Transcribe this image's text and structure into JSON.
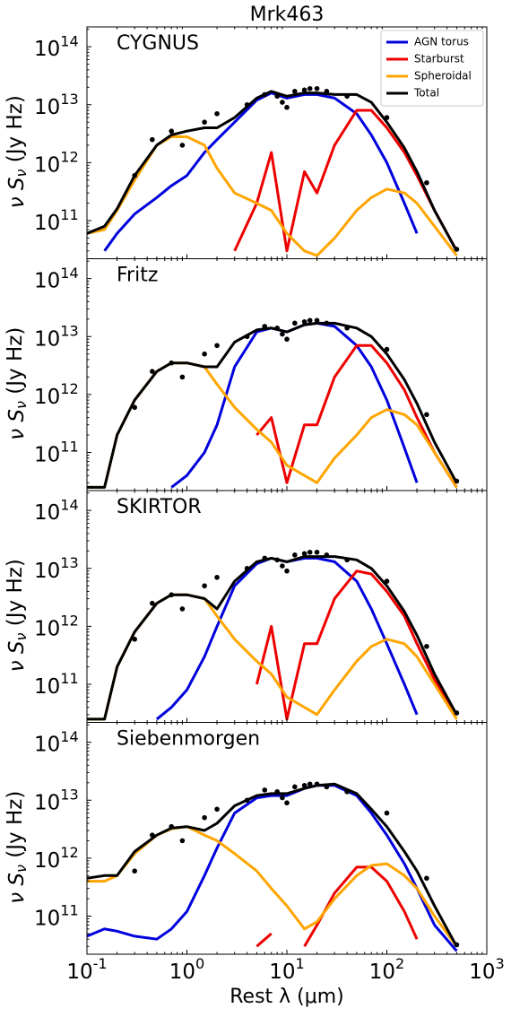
{
  "chart_data": [
    {
      "type": "line",
      "title": "Mrk463",
      "label": "CYGNUS",
      "ylabel": "ν Sν (Jy Hz)",
      "xscale": "log",
      "yscale": "log",
      "legend": "upper right",
      "xlim": [
        0.1,
        1000
      ],
      "ylim": [
        22000000000.0,
        220000000000000.0
      ],
      "xticks": [
        0.1,
        1,
        10,
        100,
        1000
      ],
      "yticks": [
        {
          "value": 100000000000.0,
          "label": "10^11"
        },
        {
          "value": 1000000000000.0,
          "label": "10^12"
        },
        {
          "value": 10000000000000.0,
          "label": "10^13"
        },
        {
          "value": 100000000000000.0,
          "label": "10^14"
        }
      ],
      "x": [
        0.1,
        0.15,
        0.2,
        0.3,
        0.5,
        0.7,
        1,
        1.5,
        2,
        3,
        5,
        7,
        10,
        15,
        20,
        30,
        50,
        70,
        100,
        150,
        200,
        300,
        500
      ],
      "series": [
        {
          "name": "AGN torus",
          "color": "#0000dd",
          "values": [
            null,
            30000000000.0,
            60000000000.0,
            130000000000.0,
            250000000000.0,
            400000000000.0,
            600000000000.0,
            1500000000000.0,
            2500000000000.0,
            5000000000000.0,
            12000000000000.0,
            16000000000000.0,
            13000000000000.0,
            15000000000000.0,
            15000000000000.0,
            13000000000000.0,
            7000000000000.0,
            3000000000000.0,
            1000000000000.0,
            200000000000.0,
            60000000000.0,
            null,
            null
          ]
        },
        {
          "name": "Starburst",
          "color": "#ee0000",
          "values": [
            null,
            null,
            null,
            null,
            null,
            null,
            null,
            null,
            null,
            30000000000.0,
            200000000000.0,
            1500000000000.0,
            30000000000.0,
            700000000000.0,
            300000000000.0,
            2000000000000.0,
            8000000000000.0,
            8000000000000.0,
            4000000000000.0,
            1500000000000.0,
            600000000000.0,
            150000000000.0,
            30000000000.0
          ]
        },
        {
          "name": "Spheroidal",
          "color": "#ffa500",
          "values": [
            60000000000.0,
            70000000000.0,
            150000000000.0,
            500000000000.0,
            2000000000000.0,
            2800000000000.0,
            2800000000000.0,
            2000000000000.0,
            800000000000.0,
            300000000000.0,
            200000000000.0,
            150000000000.0,
            60000000000.0,
            30000000000.0,
            25000000000.0,
            50000000000.0,
            150000000000.0,
            250000000000.0,
            350000000000.0,
            300000000000.0,
            200000000000.0,
            80000000000.0,
            25000000000.0
          ]
        },
        {
          "name": "Total",
          "color": "#000000",
          "values": [
            60000000000.0,
            80000000000.0,
            160000000000.0,
            600000000000.0,
            2000000000000.0,
            3000000000000.0,
            3500000000000.0,
            4000000000000.0,
            4000000000000.0,
            6000000000000.0,
            13000000000000.0,
            17000000000000.0,
            14000000000000.0,
            16000000000000.0,
            16000000000000.0,
            15000000000000.0,
            15000000000000.0,
            11000000000000.0,
            5000000000000.0,
            1800000000000.0,
            700000000000.0,
            150000000000.0,
            30000000000.0
          ]
        }
      ],
      "points": {
        "color": "#000000",
        "x": [
          0.3,
          0.45,
          0.7,
          0.9,
          1.5,
          2,
          4,
          6,
          8,
          9,
          10,
          12,
          15,
          17,
          20,
          25,
          40,
          100,
          250,
          500
        ],
        "y": [
          600000000000.0,
          2500000000000.0,
          3500000000000.0,
          2000000000000.0,
          5000000000000.0,
          7000000000000.0,
          10000000000000.0,
          15000000000000.0,
          14000000000000.0,
          11000000000000.0,
          9000000000000.0,
          17000000000000.0,
          18000000000000.0,
          19000000000000.0,
          19000000000000.0,
          17000000000000.0,
          14000000000000.0,
          6000000000000.0,
          450000000000.0,
          32000000000.0
        ]
      }
    },
    {
      "type": "line",
      "label": "Fritz",
      "ylabel": "ν Sν (Jy Hz)",
      "xscale": "log",
      "yscale": "log",
      "xlim": [
        0.1,
        1000
      ],
      "ylim": [
        22000000000.0,
        220000000000000.0
      ],
      "xticks": [
        0.1,
        1,
        10,
        100,
        1000
      ],
      "yticks": [
        {
          "value": 100000000000.0,
          "label": "10^11"
        },
        {
          "value": 1000000000000.0,
          "label": "10^12"
        },
        {
          "value": 10000000000000.0,
          "label": "10^13"
        },
        {
          "value": 100000000000000.0,
          "label": "10^14"
        }
      ],
      "x": [
        0.1,
        0.15,
        0.2,
        0.3,
        0.5,
        0.7,
        1,
        1.5,
        2,
        3,
        5,
        7,
        10,
        15,
        20,
        30,
        50,
        70,
        100,
        150,
        200,
        300,
        500
      ],
      "series": [
        {
          "color": "#0000dd",
          "values": [
            null,
            null,
            null,
            null,
            null,
            25000000000.0,
            40000000000.0,
            100000000000.0,
            300000000000.0,
            3000000000000.0,
            12000000000000.0,
            14000000000000.0,
            12000000000000.0,
            16000000000000.0,
            17000000000000.0,
            15000000000000.0,
            7000000000000.0,
            3000000000000.0,
            800000000000.0,
            120000000000.0,
            30000000000.0,
            null,
            null
          ]
        },
        {
          "color": "#ee0000",
          "values": [
            null,
            null,
            null,
            null,
            null,
            null,
            null,
            null,
            null,
            null,
            200000000000.0,
            400000000000.0,
            30000000000.0,
            300000000000.0,
            300000000000.0,
            2000000000000.0,
            7000000000000.0,
            7000000000000.0,
            3500000000000.0,
            1200000000000.0,
            400000000000.0,
            100000000000.0,
            25000000000.0
          ]
        },
        {
          "color": "#ffa500",
          "values": [
            25000000000.0,
            25000000000.0,
            200000000000.0,
            800000000000.0,
            2500000000000.0,
            3500000000000.0,
            3500000000000.0,
            3000000000000.0,
            1500000000000.0,
            600000000000.0,
            250000000000.0,
            150000000000.0,
            60000000000.0,
            40000000000.0,
            30000000000.0,
            80000000000.0,
            200000000000.0,
            400000000000.0,
            550000000000.0,
            450000000000.0,
            300000000000.0,
            100000000000.0,
            25000000000.0
          ]
        },
        {
          "color": "#000000",
          "values": [
            25000000000.0,
            25000000000.0,
            200000000000.0,
            800000000000.0,
            2500000000000.0,
            3500000000000.0,
            3500000000000.0,
            3000000000000.0,
            3000000000000.0,
            8000000000000.0,
            13000000000000.0,
            14000000000000.0,
            12000000000000.0,
            16000000000000.0,
            17000000000000.0,
            17000000000000.0,
            14000000000000.0,
            10000000000000.0,
            5000000000000.0,
            1800000000000.0,
            700000000000.0,
            150000000000.0,
            30000000000.0
          ]
        }
      ],
      "points": {
        "color": "#000000",
        "x": [
          0.3,
          0.45,
          0.7,
          0.9,
          1.5,
          2,
          4,
          6,
          8,
          9,
          10,
          12,
          15,
          17,
          20,
          25,
          40,
          100,
          250,
          500
        ],
        "y": [
          600000000000.0,
          2500000000000.0,
          3500000000000.0,
          2000000000000.0,
          5000000000000.0,
          7000000000000.0,
          10000000000000.0,
          15000000000000.0,
          14000000000000.0,
          11000000000000.0,
          9000000000000.0,
          17000000000000.0,
          18000000000000.0,
          19000000000000.0,
          19000000000000.0,
          17000000000000.0,
          14000000000000.0,
          6000000000000.0,
          450000000000.0,
          32000000000.0
        ]
      }
    },
    {
      "type": "line",
      "label": "SKIRTOR",
      "ylabel": "ν Sν (Jy Hz)",
      "xscale": "log",
      "yscale": "log",
      "xlim": [
        0.1,
        1000
      ],
      "ylim": [
        22000000000.0,
        220000000000000.0
      ],
      "xticks": [
        0.1,
        1,
        10,
        100,
        1000
      ],
      "yticks": [
        {
          "value": 100000000000.0,
          "label": "10^11"
        },
        {
          "value": 1000000000000.0,
          "label": "10^12"
        },
        {
          "value": 10000000000000.0,
          "label": "10^13"
        },
        {
          "value": 100000000000000.0,
          "label": "10^14"
        }
      ],
      "x": [
        0.1,
        0.15,
        0.2,
        0.3,
        0.5,
        0.7,
        1,
        1.5,
        2,
        3,
        5,
        7,
        10,
        15,
        20,
        30,
        50,
        70,
        100,
        150,
        200,
        300,
        500
      ],
      "series": [
        {
          "color": "#0000dd",
          "values": [
            null,
            null,
            null,
            null,
            25000000000.0,
            40000000000.0,
            80000000000.0,
            300000000000.0,
            1000000000000.0,
            5000000000000.0,
            12000000000000.0,
            15000000000000.0,
            13000000000000.0,
            15000000000000.0,
            15000000000000.0,
            13000000000000.0,
            6000000000000.0,
            2000000000000.0,
            500000000000.0,
            100000000000.0,
            30000000000.0,
            null,
            null
          ]
        },
        {
          "color": "#ee0000",
          "values": [
            null,
            null,
            null,
            null,
            null,
            null,
            null,
            null,
            null,
            null,
            100000000000.0,
            1000000000000.0,
            25000000000.0,
            500000000000.0,
            500000000000.0,
            3000000000000.0,
            9000000000000.0,
            8000000000000.0,
            4000000000000.0,
            1500000000000.0,
            500000000000.0,
            120000000000.0,
            30000000000.0
          ]
        },
        {
          "color": "#ffa500",
          "values": [
            25000000000.0,
            25000000000.0,
            200000000000.0,
            800000000000.0,
            2500000000000.0,
            3500000000000.0,
            3500000000000.0,
            3000000000000.0,
            1500000000000.0,
            600000000000.0,
            250000000000.0,
            150000000000.0,
            60000000000.0,
            40000000000.0,
            30000000000.0,
            80000000000.0,
            250000000000.0,
            450000000000.0,
            600000000000.0,
            500000000000.0,
            300000000000.0,
            100000000000.0,
            25000000000.0
          ]
        },
        {
          "color": "#000000",
          "values": [
            25000000000.0,
            25000000000.0,
            200000000000.0,
            800000000000.0,
            2500000000000.0,
            3500000000000.0,
            3500000000000.0,
            3000000000000.0,
            2000000000000.0,
            6000000000000.0,
            13000000000000.0,
            15000000000000.0,
            13000000000000.0,
            16000000000000.0,
            16000000000000.0,
            16000000000000.0,
            14000000000000.0,
            10000000000000.0,
            5000000000000.0,
            1800000000000.0,
            700000000000.0,
            150000000000.0,
            30000000000.0
          ]
        }
      ],
      "points": {
        "color": "#000000",
        "x": [
          0.3,
          0.45,
          0.7,
          0.9,
          1.5,
          2,
          4,
          6,
          8,
          9,
          10,
          12,
          15,
          17,
          20,
          25,
          40,
          100,
          250,
          500
        ],
        "y": [
          600000000000.0,
          2500000000000.0,
          3500000000000.0,
          2000000000000.0,
          5000000000000.0,
          7000000000000.0,
          10000000000000.0,
          15000000000000.0,
          14000000000000.0,
          11000000000000.0,
          9000000000000.0,
          17000000000000.0,
          18000000000000.0,
          19000000000000.0,
          19000000000000.0,
          17000000000000.0,
          14000000000000.0,
          6000000000000.0,
          450000000000.0,
          32000000000.0
        ]
      }
    },
    {
      "type": "line",
      "label": "Siebenmorgen",
      "ylabel": "ν Sν (Jy Hz)",
      "xlabel": "Rest λ (μm)",
      "xscale": "log",
      "yscale": "log",
      "xlim": [
        0.1,
        1000
      ],
      "ylim": [
        22000000000.0,
        220000000000000.0
      ],
      "xticks": [
        {
          "value": 0.1,
          "label": "10^-1"
        },
        {
          "value": 1,
          "label": "10^0"
        },
        {
          "value": 10,
          "label": "10^1"
        },
        {
          "value": 100,
          "label": "10^2"
        },
        {
          "value": 1000,
          "label": "10^3"
        }
      ],
      "yticks": [
        {
          "value": 100000000000.0,
          "label": "10^11"
        },
        {
          "value": 1000000000000.0,
          "label": "10^12"
        },
        {
          "value": 10000000000000.0,
          "label": "10^13"
        },
        {
          "value": 100000000000000.0,
          "label": "10^14"
        }
      ],
      "x": [
        0.1,
        0.15,
        0.2,
        0.3,
        0.5,
        0.7,
        1,
        1.5,
        2,
        3,
        5,
        7,
        10,
        15,
        20,
        30,
        50,
        70,
        100,
        150,
        200,
        300,
        500
      ],
      "series": [
        {
          "color": "#0000dd",
          "values": [
            45000000000.0,
            60000000000.0,
            55000000000.0,
            45000000000.0,
            40000000000.0,
            60000000000.0,
            120000000000.0,
            500000000000.0,
            1500000000000.0,
            6000000000000.0,
            11000000000000.0,
            12000000000000.0,
            12000000000000.0,
            16000000000000.0,
            18000000000000.0,
            18000000000000.0,
            12000000000000.0,
            6000000000000.0,
            2500000000000.0,
            800000000000.0,
            300000000000.0,
            70000000000.0,
            25000000000.0
          ]
        },
        {
          "color": "#ee0000",
          "values": [
            null,
            null,
            null,
            null,
            null,
            null,
            null,
            null,
            null,
            null,
            30000000000.0,
            50000000000.0,
            null,
            30000000000.0,
            70000000000.0,
            250000000000.0,
            700000000000.0,
            700000000000.0,
            400000000000.0,
            120000000000.0,
            40000000000.0,
            null,
            null
          ]
        },
        {
          "color": "#ffa500",
          "values": [
            400000000000.0,
            400000000000.0,
            500000000000.0,
            1200000000000.0,
            2500000000000.0,
            3200000000000.0,
            3500000000000.0,
            2500000000000.0,
            2000000000000.0,
            1200000000000.0,
            600000000000.0,
            300000000000.0,
            150000000000.0,
            60000000000.0,
            80000000000.0,
            200000000000.0,
            500000000000.0,
            750000000000.0,
            800000000000.0,
            500000000000.0,
            300000000000.0,
            100000000000.0,
            30000000000.0
          ]
        },
        {
          "color": "#000000",
          "values": [
            450000000000.0,
            500000000000.0,
            500000000000.0,
            1300000000000.0,
            2500000000000.0,
            3300000000000.0,
            3500000000000.0,
            3000000000000.0,
            4000000000000.0,
            8000000000000.0,
            12000000000000.0,
            13000000000000.0,
            13000000000000.0,
            16000000000000.0,
            18000000000000.0,
            19000000000000.0,
            13000000000000.0,
            7000000000000.0,
            3500000000000.0,
            1300000000000.0,
            600000000000.0,
            150000000000.0,
            30000000000.0
          ]
        }
      ],
      "points": {
        "color": "#000000",
        "x": [
          0.3,
          0.45,
          0.7,
          0.9,
          1.5,
          2,
          4,
          6,
          8,
          9,
          10,
          12,
          15,
          17,
          20,
          25,
          40,
          100,
          250,
          500
        ],
        "y": [
          600000000000.0,
          2500000000000.0,
          3500000000000.0,
          2000000000000.0,
          5000000000000.0,
          7000000000000.0,
          10000000000000.0,
          15000000000000.0,
          14000000000000.0,
          11000000000000.0,
          9000000000000.0,
          17000000000000.0,
          18000000000000.0,
          19000000000000.0,
          19000000000000.0,
          17000000000000.0,
          14000000000000.0,
          6000000000000.0,
          450000000000.0,
          32000000000.0
        ]
      }
    }
  ]
}
